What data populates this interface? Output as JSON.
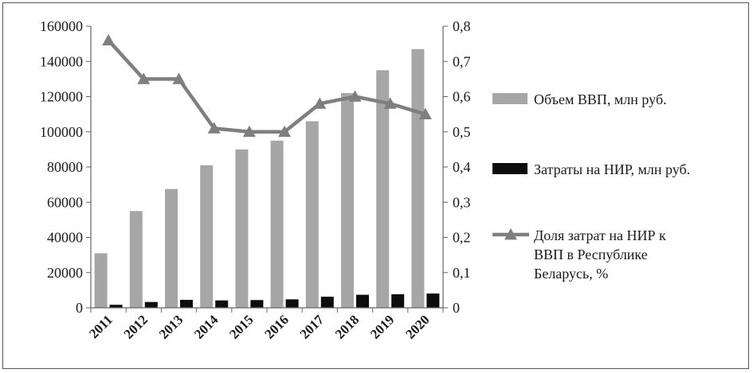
{
  "chart_data": {
    "type": "bar",
    "categories": [
      "2011",
      "2012",
      "2013",
      "2014",
      "2015",
      "2016",
      "2017",
      "2018",
      "2019",
      "2020"
    ],
    "series": [
      {
        "name": "Объем ВВП, млн руб.",
        "kind": "bar",
        "axis": "left",
        "color": "#a6a6a6",
        "values": [
          31000,
          55000,
          67500,
          81000,
          90000,
          95000,
          106000,
          122000,
          135000,
          147000
        ]
      },
      {
        "name": "Затраты на НИР, млн руб.",
        "kind": "bar",
        "axis": "left",
        "color": "#0d0d0d",
        "values": [
          1700,
          3300,
          4500,
          4200,
          4400,
          4800,
          6300,
          7400,
          7700,
          8100
        ]
      },
      {
        "name": "Доля затрат на НИР к ВВП в Республике Беларусь, %",
        "name_lines": [
          "Доля затрат на НИР к",
          "ВВП в Республике",
          "Беларусь, %"
        ],
        "kind": "line",
        "axis": "right",
        "color": "#7f7f7f",
        "values": [
          0.76,
          0.65,
          0.65,
          0.51,
          0.5,
          0.5,
          0.58,
          0.6,
          0.58,
          0.55
        ]
      }
    ],
    "y_left": {
      "ylim": [
        0,
        160000
      ],
      "ticks": [
        0,
        20000,
        40000,
        60000,
        80000,
        100000,
        120000,
        140000,
        160000
      ],
      "tick_labels": [
        "0",
        "20000",
        "40000",
        "60000",
        "80000",
        "100000",
        "120000",
        "140000",
        "160000"
      ]
    },
    "y_right": {
      "ylim": [
        0,
        0.8
      ],
      "ticks": [
        0,
        0.1,
        0.2,
        0.3,
        0.4,
        0.5,
        0.6,
        0.7,
        0.8
      ],
      "tick_labels": [
        "0",
        "0,1",
        "0,2",
        "0,3",
        "0,4",
        "0,5",
        "0,6",
        "0,7",
        "0,8"
      ]
    },
    "grid": false,
    "legend_position": "right"
  }
}
